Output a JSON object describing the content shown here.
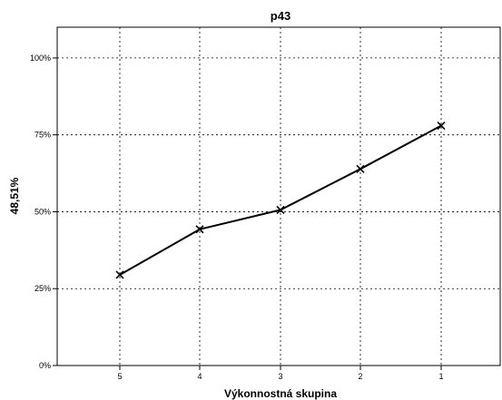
{
  "chart_data": {
    "type": "line",
    "title": "p43",
    "xlabel": "Výkonnostná skupina",
    "ylabel": "48,51%",
    "categories": [
      "5",
      "4",
      "3",
      "2",
      "1"
    ],
    "series": [
      {
        "values": [
          29.5,
          44.3,
          50.6,
          63.9,
          78.0
        ]
      }
    ],
    "ylim": [
      0,
      110
    ],
    "yticks": [
      0,
      25,
      50,
      75,
      100
    ],
    "ytick_labels": [
      "0%",
      "25%",
      "50%",
      "75%",
      "100%"
    ],
    "grid": true,
    "marker": "x",
    "line_color": "#000000"
  }
}
